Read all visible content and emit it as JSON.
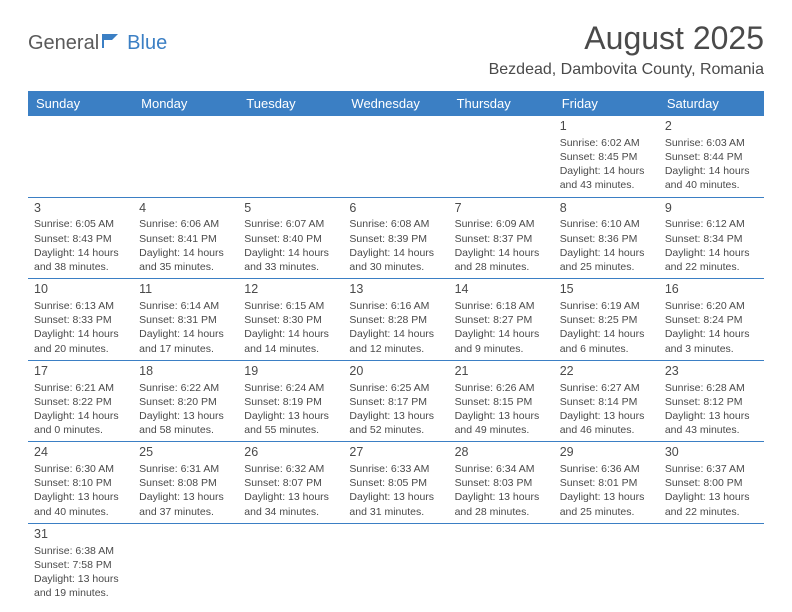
{
  "logo": {
    "part1": "General",
    "part2": "Blue"
  },
  "title": "August 2025",
  "location": "Bezdead, Dambovita County, Romania",
  "colors": {
    "header_bg": "#3b7fc4",
    "header_text": "#ffffff",
    "cell_border": "#3b7fc4",
    "text": "#4a4a4a",
    "background": "#ffffff"
  },
  "daysOfWeek": [
    "Sunday",
    "Monday",
    "Tuesday",
    "Wednesday",
    "Thursday",
    "Friday",
    "Saturday"
  ],
  "weeks": [
    [
      null,
      null,
      null,
      null,
      null,
      {
        "n": "1",
        "sr": "Sunrise: 6:02 AM",
        "ss": "Sunset: 8:45 PM",
        "d1": "Daylight: 14 hours",
        "d2": "and 43 minutes."
      },
      {
        "n": "2",
        "sr": "Sunrise: 6:03 AM",
        "ss": "Sunset: 8:44 PM",
        "d1": "Daylight: 14 hours",
        "d2": "and 40 minutes."
      }
    ],
    [
      {
        "n": "3",
        "sr": "Sunrise: 6:05 AM",
        "ss": "Sunset: 8:43 PM",
        "d1": "Daylight: 14 hours",
        "d2": "and 38 minutes."
      },
      {
        "n": "4",
        "sr": "Sunrise: 6:06 AM",
        "ss": "Sunset: 8:41 PM",
        "d1": "Daylight: 14 hours",
        "d2": "and 35 minutes."
      },
      {
        "n": "5",
        "sr": "Sunrise: 6:07 AM",
        "ss": "Sunset: 8:40 PM",
        "d1": "Daylight: 14 hours",
        "d2": "and 33 minutes."
      },
      {
        "n": "6",
        "sr": "Sunrise: 6:08 AM",
        "ss": "Sunset: 8:39 PM",
        "d1": "Daylight: 14 hours",
        "d2": "and 30 minutes."
      },
      {
        "n": "7",
        "sr": "Sunrise: 6:09 AM",
        "ss": "Sunset: 8:37 PM",
        "d1": "Daylight: 14 hours",
        "d2": "and 28 minutes."
      },
      {
        "n": "8",
        "sr": "Sunrise: 6:10 AM",
        "ss": "Sunset: 8:36 PM",
        "d1": "Daylight: 14 hours",
        "d2": "and 25 minutes."
      },
      {
        "n": "9",
        "sr": "Sunrise: 6:12 AM",
        "ss": "Sunset: 8:34 PM",
        "d1": "Daylight: 14 hours",
        "d2": "and 22 minutes."
      }
    ],
    [
      {
        "n": "10",
        "sr": "Sunrise: 6:13 AM",
        "ss": "Sunset: 8:33 PM",
        "d1": "Daylight: 14 hours",
        "d2": "and 20 minutes."
      },
      {
        "n": "11",
        "sr": "Sunrise: 6:14 AM",
        "ss": "Sunset: 8:31 PM",
        "d1": "Daylight: 14 hours",
        "d2": "and 17 minutes."
      },
      {
        "n": "12",
        "sr": "Sunrise: 6:15 AM",
        "ss": "Sunset: 8:30 PM",
        "d1": "Daylight: 14 hours",
        "d2": "and 14 minutes."
      },
      {
        "n": "13",
        "sr": "Sunrise: 6:16 AM",
        "ss": "Sunset: 8:28 PM",
        "d1": "Daylight: 14 hours",
        "d2": "and 12 minutes."
      },
      {
        "n": "14",
        "sr": "Sunrise: 6:18 AM",
        "ss": "Sunset: 8:27 PM",
        "d1": "Daylight: 14 hours",
        "d2": "and 9 minutes."
      },
      {
        "n": "15",
        "sr": "Sunrise: 6:19 AM",
        "ss": "Sunset: 8:25 PM",
        "d1": "Daylight: 14 hours",
        "d2": "and 6 minutes."
      },
      {
        "n": "16",
        "sr": "Sunrise: 6:20 AM",
        "ss": "Sunset: 8:24 PM",
        "d1": "Daylight: 14 hours",
        "d2": "and 3 minutes."
      }
    ],
    [
      {
        "n": "17",
        "sr": "Sunrise: 6:21 AM",
        "ss": "Sunset: 8:22 PM",
        "d1": "Daylight: 14 hours",
        "d2": "and 0 minutes."
      },
      {
        "n": "18",
        "sr": "Sunrise: 6:22 AM",
        "ss": "Sunset: 8:20 PM",
        "d1": "Daylight: 13 hours",
        "d2": "and 58 minutes."
      },
      {
        "n": "19",
        "sr": "Sunrise: 6:24 AM",
        "ss": "Sunset: 8:19 PM",
        "d1": "Daylight: 13 hours",
        "d2": "and 55 minutes."
      },
      {
        "n": "20",
        "sr": "Sunrise: 6:25 AM",
        "ss": "Sunset: 8:17 PM",
        "d1": "Daylight: 13 hours",
        "d2": "and 52 minutes."
      },
      {
        "n": "21",
        "sr": "Sunrise: 6:26 AM",
        "ss": "Sunset: 8:15 PM",
        "d1": "Daylight: 13 hours",
        "d2": "and 49 minutes."
      },
      {
        "n": "22",
        "sr": "Sunrise: 6:27 AM",
        "ss": "Sunset: 8:14 PM",
        "d1": "Daylight: 13 hours",
        "d2": "and 46 minutes."
      },
      {
        "n": "23",
        "sr": "Sunrise: 6:28 AM",
        "ss": "Sunset: 8:12 PM",
        "d1": "Daylight: 13 hours",
        "d2": "and 43 minutes."
      }
    ],
    [
      {
        "n": "24",
        "sr": "Sunrise: 6:30 AM",
        "ss": "Sunset: 8:10 PM",
        "d1": "Daylight: 13 hours",
        "d2": "and 40 minutes."
      },
      {
        "n": "25",
        "sr": "Sunrise: 6:31 AM",
        "ss": "Sunset: 8:08 PM",
        "d1": "Daylight: 13 hours",
        "d2": "and 37 minutes."
      },
      {
        "n": "26",
        "sr": "Sunrise: 6:32 AM",
        "ss": "Sunset: 8:07 PM",
        "d1": "Daylight: 13 hours",
        "d2": "and 34 minutes."
      },
      {
        "n": "27",
        "sr": "Sunrise: 6:33 AM",
        "ss": "Sunset: 8:05 PM",
        "d1": "Daylight: 13 hours",
        "d2": "and 31 minutes."
      },
      {
        "n": "28",
        "sr": "Sunrise: 6:34 AM",
        "ss": "Sunset: 8:03 PM",
        "d1": "Daylight: 13 hours",
        "d2": "and 28 minutes."
      },
      {
        "n": "29",
        "sr": "Sunrise: 6:36 AM",
        "ss": "Sunset: 8:01 PM",
        "d1": "Daylight: 13 hours",
        "d2": "and 25 minutes."
      },
      {
        "n": "30",
        "sr": "Sunrise: 6:37 AM",
        "ss": "Sunset: 8:00 PM",
        "d1": "Daylight: 13 hours",
        "d2": "and 22 minutes."
      }
    ],
    [
      {
        "n": "31",
        "sr": "Sunrise: 6:38 AM",
        "ss": "Sunset: 7:58 PM",
        "d1": "Daylight: 13 hours",
        "d2": "and 19 minutes."
      },
      null,
      null,
      null,
      null,
      null,
      null
    ]
  ]
}
